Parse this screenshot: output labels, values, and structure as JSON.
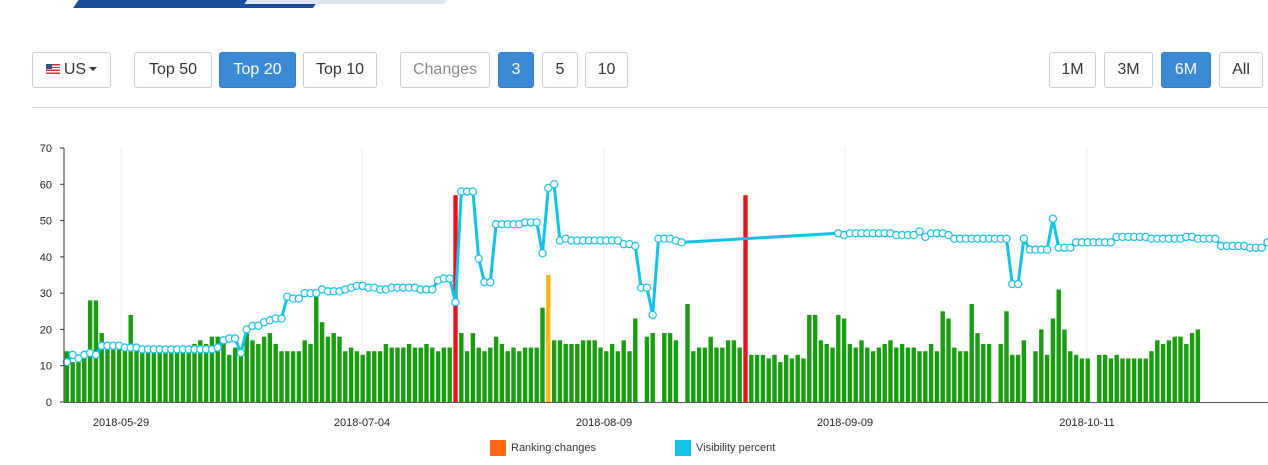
{
  "toolbar": {
    "country": {
      "label": "US",
      "flag_icon": "us-flag-icon"
    },
    "top_buttons": [
      {
        "label": "Top 50",
        "active": false
      },
      {
        "label": "Top 20",
        "active": true
      },
      {
        "label": "Top 10",
        "active": false
      }
    ],
    "changes_label": "Changes",
    "change_buttons": [
      {
        "label": "3",
        "active": true
      },
      {
        "label": "5",
        "active": false
      },
      {
        "label": "10",
        "active": false
      }
    ],
    "period_buttons": [
      {
        "label": "1M",
        "active": false
      },
      {
        "label": "3M",
        "active": false
      },
      {
        "label": "6M",
        "active": true
      },
      {
        "label": "All",
        "active": false
      }
    ]
  },
  "colors": {
    "accent": "#3a8ad6",
    "bar_green": "#1a9c10",
    "ranking_red": "#e8141c",
    "ranking_orange": "#ffb414",
    "visibility_line": "#13c2e6",
    "legend_ranking": "#ff6611"
  },
  "chart_data": {
    "type": "bar",
    "ylim": [
      0,
      70
    ],
    "yticks": [
      0,
      10,
      20,
      30,
      40,
      50,
      60,
      70
    ],
    "x_tick_labels": [
      "2018-05-29",
      "2018-07-04",
      "2018-08-09",
      "2018-09-09",
      "2018-10-11"
    ],
    "grid": true,
    "legend": [
      "Ranking changes",
      "Visibility percent"
    ],
    "legend_position": "bottom",
    "series": [
      {
        "name": "Ranking changes",
        "type": "bar",
        "values": [
          14,
          11,
          13,
          14,
          28,
          28,
          19,
          16,
          16,
          16,
          15,
          24,
          15,
          15,
          14,
          14,
          14,
          14,
          14,
          14,
          15,
          15,
          16,
          17,
          16,
          18,
          18,
          18,
          13,
          15,
          15,
          19,
          17,
          16,
          18,
          19,
          16,
          14,
          14,
          14,
          14,
          17,
          16,
          30,
          22,
          18,
          19,
          18,
          14,
          15,
          14,
          13,
          14,
          14,
          14,
          16,
          15,
          15,
          15,
          16,
          15,
          15,
          16,
          15,
          14,
          15,
          15,
          57,
          19,
          14,
          19,
          15,
          14,
          15,
          18,
          16,
          14,
          15,
          14,
          15,
          15,
          15,
          26,
          35,
          17,
          17,
          16,
          16,
          16,
          17,
          17,
          17,
          15,
          14,
          16,
          14,
          17,
          14,
          23,
          0,
          18,
          19,
          0,
          19,
          19,
          17,
          0,
          27,
          14,
          15,
          15,
          18,
          15,
          15,
          17,
          17,
          15,
          57,
          13,
          13,
          13,
          12,
          13,
          11,
          13,
          12,
          13,
          12,
          24,
          24,
          17,
          16,
          15,
          24,
          23,
          16,
          15,
          17,
          15,
          14,
          15,
          16,
          17,
          15,
          16,
          15,
          15,
          14,
          14,
          16,
          14,
          25,
          23,
          15,
          14,
          14,
          27,
          19,
          16,
          16,
          0,
          16,
          25,
          13,
          13,
          17,
          0,
          14,
          20,
          13,
          23,
          31,
          20,
          14,
          13,
          12,
          12,
          0,
          13,
          13,
          12,
          13,
          12,
          12,
          12,
          12,
          12,
          14,
          17,
          16,
          17,
          18,
          18,
          16,
          19,
          20
        ],
        "highlights": [
          {
            "index": 67,
            "color": "#e8141c"
          },
          {
            "index": 83,
            "color": "#ffb414"
          },
          {
            "index": 117,
            "color": "#e8141c"
          }
        ]
      },
      {
        "name": "Visibility percent",
        "type": "line",
        "points": [
          [
            0,
            11
          ],
          [
            1,
            13
          ],
          [
            2,
            12
          ],
          [
            3,
            13
          ],
          [
            4,
            13.5
          ],
          [
            5,
            13
          ],
          [
            6,
            15.5
          ],
          [
            7,
            15.5
          ],
          [
            8,
            15.5
          ],
          [
            9,
            15.5
          ],
          [
            10,
            15
          ],
          [
            11,
            15
          ],
          [
            12,
            15
          ],
          [
            13,
            14.5
          ],
          [
            14,
            14.5
          ],
          [
            15,
            14.5
          ],
          [
            16,
            14.5
          ],
          [
            17,
            14.5
          ],
          [
            18,
            14.5
          ],
          [
            19,
            14.5
          ],
          [
            20,
            14.5
          ],
          [
            21,
            14.5
          ],
          [
            22,
            14.5
          ],
          [
            23,
            14.5
          ],
          [
            24,
            14.5
          ],
          [
            25,
            14.5
          ],
          [
            26,
            15
          ],
          [
            27,
            17
          ],
          [
            28,
            17.5
          ],
          [
            29,
            17.5
          ],
          [
            30,
            13.5
          ],
          [
            31,
            20
          ],
          [
            32,
            21
          ],
          [
            33,
            21
          ],
          [
            34,
            22
          ],
          [
            35,
            22.5
          ],
          [
            36,
            23
          ],
          [
            37,
            23
          ],
          [
            38,
            29
          ],
          [
            39,
            28.5
          ],
          [
            40,
            28.5
          ],
          [
            41,
            30
          ],
          [
            42,
            30
          ],
          [
            43,
            30
          ],
          [
            44,
            31
          ],
          [
            45,
            30.5
          ],
          [
            46,
            30.5
          ],
          [
            47,
            30.5
          ],
          [
            48,
            31
          ],
          [
            49,
            31.5
          ],
          [
            50,
            32
          ],
          [
            51,
            32
          ],
          [
            52,
            31.5
          ],
          [
            53,
            31.5
          ],
          [
            54,
            31
          ],
          [
            55,
            31
          ],
          [
            56,
            31.5
          ],
          [
            57,
            31.5
          ],
          [
            58,
            31.5
          ],
          [
            59,
            31.5
          ],
          [
            60,
            31.5
          ],
          [
            61,
            31
          ],
          [
            62,
            31
          ],
          [
            63,
            31
          ],
          [
            64,
            33.5
          ],
          [
            65,
            34
          ],
          [
            66,
            34
          ],
          [
            67,
            27.5
          ],
          [
            68,
            58
          ],
          [
            69,
            58
          ],
          [
            70,
            58
          ],
          [
            71,
            39.5
          ],
          [
            72,
            33
          ],
          [
            73,
            33
          ],
          [
            74,
            49
          ],
          [
            75,
            49
          ],
          [
            76,
            49
          ],
          [
            77,
            49
          ],
          [
            78,
            49
          ],
          [
            79,
            49.5
          ],
          [
            80,
            49.5
          ],
          [
            81,
            49.5
          ],
          [
            82,
            41
          ],
          [
            83,
            59
          ],
          [
            84,
            60
          ],
          [
            85,
            44.5
          ],
          [
            86,
            45
          ],
          [
            87,
            44.5
          ],
          [
            88,
            44.5
          ],
          [
            89,
            44.5
          ],
          [
            90,
            44.5
          ],
          [
            91,
            44.5
          ],
          [
            92,
            44.5
          ],
          [
            93,
            44.5
          ],
          [
            94,
            44.5
          ],
          [
            95,
            44.5
          ],
          [
            96,
            43.5
          ],
          [
            97,
            43.5
          ],
          [
            98,
            43
          ],
          [
            99,
            31.5
          ],
          [
            100,
            31.5
          ],
          [
            101,
            24
          ],
          [
            102,
            45
          ],
          [
            103,
            45
          ],
          [
            104,
            45
          ],
          [
            105,
            44.5
          ],
          [
            106,
            44
          ],
          [
            133,
            46.5
          ],
          [
            134,
            46
          ],
          [
            135,
            46.5
          ],
          [
            136,
            46.5
          ],
          [
            137,
            46.5
          ],
          [
            138,
            46.5
          ],
          [
            139,
            46.5
          ],
          [
            140,
            46.5
          ],
          [
            141,
            46.5
          ],
          [
            142,
            46.5
          ],
          [
            143,
            46
          ],
          [
            144,
            46
          ],
          [
            145,
            46
          ],
          [
            146,
            46
          ],
          [
            147,
            47
          ],
          [
            148,
            45.5
          ],
          [
            149,
            46.5
          ],
          [
            150,
            46.5
          ],
          [
            151,
            46.5
          ],
          [
            152,
            46
          ],
          [
            153,
            45
          ],
          [
            154,
            45
          ],
          [
            155,
            45
          ],
          [
            156,
            45
          ],
          [
            157,
            45
          ],
          [
            158,
            45
          ],
          [
            159,
            45
          ],
          [
            160,
            45
          ],
          [
            161,
            45
          ],
          [
            162,
            45
          ],
          [
            163,
            32.5
          ],
          [
            164,
            32.5
          ],
          [
            165,
            45
          ],
          [
            166,
            42
          ],
          [
            167,
            42
          ],
          [
            168,
            42
          ],
          [
            169,
            42
          ],
          [
            170,
            50.5
          ],
          [
            171,
            42.5
          ],
          [
            172,
            42.5
          ],
          [
            173,
            42.5
          ],
          [
            174,
            44
          ],
          [
            175,
            44
          ],
          [
            176,
            44
          ],
          [
            177,
            44
          ],
          [
            178,
            44
          ],
          [
            179,
            44
          ],
          [
            180,
            44
          ],
          [
            181,
            45.5
          ],
          [
            182,
            45.5
          ],
          [
            183,
            45.5
          ],
          [
            184,
            45.5
          ],
          [
            185,
            45.5
          ],
          [
            186,
            45.5
          ],
          [
            187,
            45
          ],
          [
            188,
            45
          ],
          [
            189,
            45
          ],
          [
            190,
            45
          ],
          [
            191,
            45
          ],
          [
            192,
            45
          ],
          [
            193,
            45.5
          ],
          [
            194,
            45.5
          ],
          [
            195,
            45
          ],
          [
            196,
            45
          ],
          [
            197,
            45
          ],
          [
            198,
            45
          ],
          [
            199,
            43
          ],
          [
            200,
            43
          ],
          [
            201,
            43
          ],
          [
            202,
            43
          ],
          [
            203,
            43
          ],
          [
            204,
            42.5
          ],
          [
            205,
            42.5
          ],
          [
            206,
            42.5
          ],
          [
            207,
            44
          ]
        ]
      }
    ]
  }
}
